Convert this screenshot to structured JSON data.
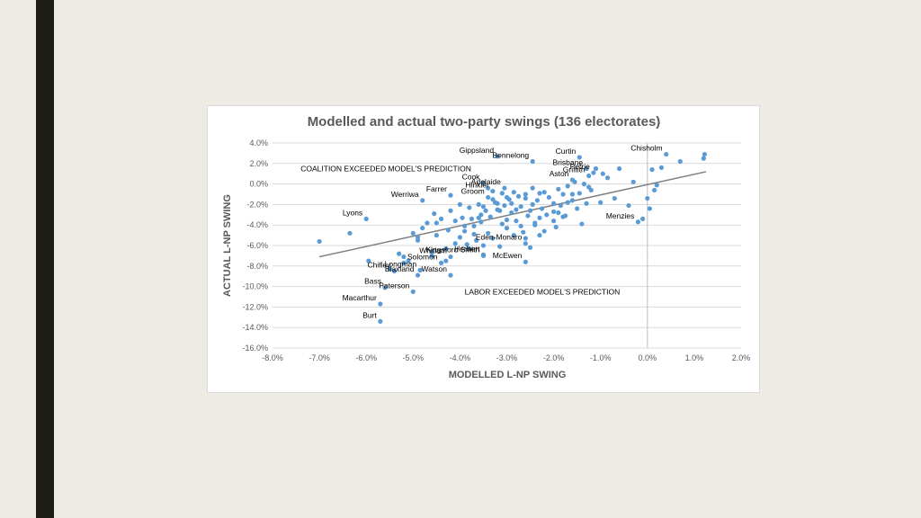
{
  "slide": {
    "accent_bar_color": "#1c1d17",
    "background": "#eeebe4"
  },
  "chart_data": {
    "type": "scatter",
    "title": "Modelled and actual two-party swings (136 electorates)",
    "xlabel": "MODELLED L-NP SWING",
    "ylabel": "ACTUAL L-NP SWING",
    "xlim": [
      -8,
      2
    ],
    "ylim": [
      -16,
      4
    ],
    "x_ticks": [
      "-8.0%",
      "-7.0%",
      "-6.0%",
      "-5.0%",
      "-4.0%",
      "-3.0%",
      "-2.0%",
      "-1.0%",
      "0.0%",
      "1.0%",
      "2.0%"
    ],
    "y_ticks": [
      "4.0%",
      "2.0%",
      "0.0%",
      "-2.0%",
      "-4.0%",
      "-6.0%",
      "-8.0%",
      "-10.0%",
      "-12.0%",
      "-14.0%",
      "-16.0%"
    ],
    "grid": "horizontal",
    "marker_color": "#5b9bd5",
    "trendline": {
      "x": [
        -7.0,
        1.25
      ],
      "y": [
        -7.1,
        1.2
      ],
      "color": "#808080"
    },
    "annotations": [
      {
        "text": "COALITION EXCEEDED MODEL'S PREDICTION",
        "x": -7.4,
        "y": 1.5
      },
      {
        "text": "LABOR EXCEEDED MODEL'S PREDICTION",
        "x": -3.9,
        "y": -10.5
      }
    ],
    "labeled_points": [
      {
        "name": "Gippsland",
        "x": -3.2,
        "y": 2.7
      },
      {
        "name": "Bennelong",
        "x": -2.45,
        "y": 2.2
      },
      {
        "name": "Curtin",
        "x": -1.45,
        "y": 2.6
      },
      {
        "name": "Chisholm",
        "x": 0.4,
        "y": 2.9
      },
      {
        "name": "Brisbane",
        "x": -1.3,
        "y": 1.5
      },
      {
        "name": "Petrie",
        "x": -1.15,
        "y": 1.1
      },
      {
        "name": "Griffith",
        "x": -1.25,
        "y": 0.8
      },
      {
        "name": "Aston",
        "x": -1.6,
        "y": 0.4
      },
      {
        "name": "Cook",
        "x": -3.5,
        "y": 0.1
      },
      {
        "name": "Adelaide",
        "x": -3.05,
        "y": -0.4
      },
      {
        "name": "Hinkler",
        "x": -3.3,
        "y": -0.7
      },
      {
        "name": "Farrer",
        "x": -4.2,
        "y": -1.1
      },
      {
        "name": "Groom",
        "x": -3.4,
        "y": -1.3
      },
      {
        "name": "Werriwa",
        "x": -4.8,
        "y": -1.6
      },
      {
        "name": "Lyons",
        "x": -6.0,
        "y": -3.4
      },
      {
        "name": "Menzies",
        "x": -0.2,
        "y": -3.7
      },
      {
        "name": "Eden-Monaro",
        "x": -2.6,
        "y": -5.8
      },
      {
        "name": "Whitlam",
        "x": -4.2,
        "y": -7.1
      },
      {
        "name": "Herbert",
        "x": -3.5,
        "y": -6.9
      },
      {
        "name": "Kingsford Smith",
        "x": -3.5,
        "y": -7.0
      },
      {
        "name": "Solomon",
        "x": -4.4,
        "y": -7.7
      },
      {
        "name": "McEwen",
        "x": -2.6,
        "y": -7.6
      },
      {
        "name": "Longman",
        "x": -4.85,
        "y": -8.4
      },
      {
        "name": "Chifley",
        "x": -5.4,
        "y": -8.5
      },
      {
        "name": "Blaxland",
        "x": -4.9,
        "y": -8.9
      },
      {
        "name": "Watson",
        "x": -4.2,
        "y": -8.9
      },
      {
        "name": "Bass",
        "x": -5.6,
        "y": -10.1
      },
      {
        "name": "Paterson",
        "x": -5.0,
        "y": -10.5
      },
      {
        "name": "Macarthur",
        "x": -5.7,
        "y": -11.7
      },
      {
        "name": "Burt",
        "x": -5.7,
        "y": -13.4
      }
    ],
    "points": [
      [
        -7.0,
        -5.6
      ],
      [
        -6.35,
        -4.8
      ],
      [
        -5.95,
        -7.5
      ],
      [
        -5.5,
        -8.3
      ],
      [
        -5.3,
        -6.8
      ],
      [
        -5.2,
        -7.1
      ],
      [
        -5.1,
        -7.5
      ],
      [
        -5.0,
        -4.8
      ],
      [
        -4.9,
        -5.2
      ],
      [
        -4.8,
        -4.3
      ],
      [
        -4.7,
        -3.8
      ],
      [
        -4.6,
        -7.0
      ],
      [
        -4.5,
        -5.0
      ],
      [
        -4.55,
        -2.9
      ],
      [
        -4.4,
        -3.4
      ],
      [
        -4.3,
        -6.3
      ],
      [
        -4.25,
        -4.5
      ],
      [
        -4.2,
        -2.6
      ],
      [
        -4.1,
        -3.6
      ],
      [
        -4.0,
        -5.2
      ],
      [
        -3.95,
        -3.3
      ],
      [
        -3.9,
        -4.6
      ],
      [
        -3.85,
        -5.9
      ],
      [
        -3.8,
        -2.3
      ],
      [
        -3.75,
        -3.4
      ],
      [
        -3.7,
        -4.1
      ],
      [
        -3.65,
        -5.5
      ],
      [
        -3.6,
        -2.0
      ],
      [
        -3.55,
        -3.7
      ],
      [
        -3.5,
        -6.0
      ],
      [
        -3.45,
        -2.6
      ],
      [
        -3.4,
        -4.8
      ],
      [
        -3.35,
        -3.2
      ],
      [
        -3.3,
        -5.3
      ],
      [
        -3.25,
        -1.8
      ],
      [
        -3.2,
        -2.5
      ],
      [
        -3.15,
        -6.1
      ],
      [
        -3.1,
        -3.9
      ],
      [
        -3.05,
        -2.1
      ],
      [
        -3.0,
        -4.3
      ],
      [
        -2.95,
        -1.5
      ],
      [
        -2.9,
        -2.8
      ],
      [
        -2.85,
        -5.0
      ],
      [
        -2.8,
        -3.6
      ],
      [
        -2.75,
        -1.2
      ],
      [
        -2.7,
        -2.2
      ],
      [
        -2.65,
        -4.7
      ],
      [
        -2.6,
        -1.0
      ],
      [
        -2.55,
        -3.1
      ],
      [
        -2.5,
        -2.6
      ],
      [
        -2.45,
        -0.4
      ],
      [
        -2.4,
        -4.0
      ],
      [
        -2.35,
        -1.6
      ],
      [
        -2.3,
        -3.3
      ],
      [
        -2.25,
        -2.4
      ],
      [
        -2.2,
        -0.8
      ],
      [
        -2.15,
        -3.0
      ],
      [
        -2.1,
        -1.3
      ],
      [
        -2.0,
        -2.7
      ],
      [
        -1.95,
        -4.2
      ],
      [
        -1.9,
        -0.5
      ],
      [
        -1.85,
        -2.1
      ],
      [
        -1.8,
        -1.0
      ],
      [
        -1.75,
        -3.1
      ],
      [
        -1.7,
        -0.2
      ],
      [
        -1.6,
        -1.6
      ],
      [
        -1.5,
        -2.4
      ],
      [
        -1.45,
        -0.9
      ],
      [
        -1.4,
        -3.9
      ],
      [
        -1.35,
        0.0
      ],
      [
        -1.3,
        -1.9
      ],
      [
        -1.2,
        -0.6
      ],
      [
        -1.1,
        1.5
      ],
      [
        -1.0,
        -1.8
      ],
      [
        -0.85,
        0.6
      ],
      [
        -0.7,
        -1.4
      ],
      [
        -0.6,
        1.5
      ],
      [
        -0.4,
        -2.1
      ],
      [
        -0.1,
        -3.4
      ],
      [
        0.0,
        -1.4
      ],
      [
        0.05,
        -2.4
      ],
      [
        0.1,
        1.4
      ],
      [
        0.15,
        -0.6
      ],
      [
        0.2,
        -0.1
      ],
      [
        0.7,
        2.2
      ],
      [
        1.2,
        2.5
      ],
      [
        1.22,
        2.9
      ],
      [
        -3.3,
        -1.5
      ],
      [
        -3.2,
        -1.9
      ],
      [
        -3.0,
        -1.3
      ],
      [
        -2.9,
        -1.9
      ],
      [
        -2.8,
        -2.5
      ],
      [
        -3.5,
        -2.2
      ],
      [
        -3.6,
        -3.3
      ],
      [
        -3.9,
        -4.1
      ],
      [
        -4.1,
        -5.8
      ],
      [
        -3.8,
        -6.3
      ],
      [
        -4.3,
        -7.5
      ],
      [
        -4.6,
        -6.6
      ],
      [
        -5.2,
        -7.7
      ],
      [
        -2.7,
        -4.1
      ],
      [
        -2.6,
        -5.3
      ],
      [
        -2.5,
        -6.2
      ],
      [
        -2.3,
        -5.0
      ],
      [
        -2.2,
        -4.6
      ],
      [
        -2.0,
        -3.6
      ],
      [
        -1.9,
        -2.8
      ],
      [
        -1.7,
        -1.8
      ],
      [
        -3.4,
        -0.4
      ],
      [
        -3.1,
        -0.9
      ],
      [
        -2.6,
        -1.4
      ],
      [
        -2.3,
        -0.9
      ],
      [
        -2.0,
        -1.9
      ],
      [
        -1.6,
        -1.0
      ],
      [
        -4.0,
        -2.0
      ],
      [
        -4.5,
        -3.8
      ],
      [
        -4.9,
        -5.5
      ],
      [
        -3.7,
        -4.9
      ],
      [
        -3.0,
        -3.5
      ],
      [
        -2.4,
        -3.8
      ],
      [
        -1.8,
        -3.2
      ],
      [
        -1.55,
        0.2
      ],
      [
        -1.25,
        -0.3
      ],
      [
        -0.95,
        1.0
      ],
      [
        0.3,
        1.6
      ],
      [
        -0.3,
        0.2
      ],
      [
        -2.85,
        -0.8
      ],
      [
        -2.45,
        -2.0
      ],
      [
        -3.15,
        -2.6
      ],
      [
        -3.55,
        -3.0
      ]
    ]
  }
}
